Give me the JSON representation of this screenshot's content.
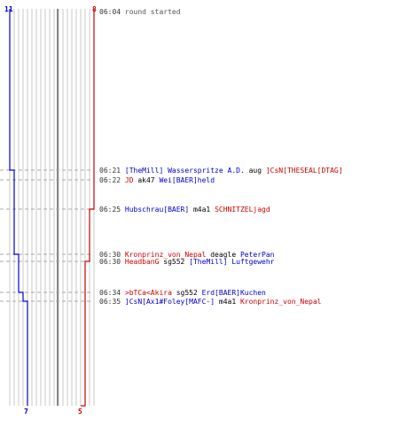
{
  "chart_data": {
    "type": "line",
    "x_start": "06:04",
    "x_end": "06:35",
    "blue_team": {
      "color": "#0000cc",
      "start": 11,
      "end": 7,
      "counts": [
        11,
        10,
        10,
        10,
        9,
        9,
        8,
        7,
        7
      ]
    },
    "red_team": {
      "color": "#cc0000",
      "start": 8,
      "end": 5,
      "counts": [
        8,
        8,
        8,
        7,
        7,
        6,
        6,
        6,
        5
      ]
    }
  },
  "colors": {
    "blue": "#0000cc",
    "red": "#cc0000",
    "grid": "#c8c8c8",
    "center": "#888888",
    "dash": "#aaaaaa"
  },
  "events": [
    {
      "time": "06:04",
      "type": "event",
      "text": "round started"
    },
    {
      "time": "06:21",
      "type": "kill",
      "killer": "[TheMill] Wasserspritze A.D.",
      "killer_team": "blue",
      "weapon": "aug",
      "victim": "]CsN[THESEAL[DTAG]",
      "victim_team": "red"
    },
    {
      "time": "06:22",
      "type": "kill",
      "killer": "JD",
      "killer_team": "red",
      "weapon": "ak47",
      "victim": "Wei[BAER]held",
      "victim_team": "blue"
    },
    {
      "time": "06:25",
      "type": "kill",
      "killer": "Hubschrau[BAER]",
      "killer_team": "blue",
      "weapon": "m4a1",
      "victim": "SCHNITZELjagd",
      "victim_team": "red"
    },
    {
      "time": "06:30",
      "type": "kill",
      "killer": "Kronprinz_von_Nepal",
      "killer_team": "red",
      "weapon": "deagle",
      "victim": "PeterPan",
      "victim_team": "blue"
    },
    {
      "time": "06:30",
      "type": "kill",
      "killer": "HeadbanG",
      "killer_team": "red",
      "weapon": "sg552",
      "victim": "[TheMill] Luftgewehr",
      "victim_team": "blue"
    },
    {
      "time": "06:34",
      "type": "kill",
      "killer": ">bTCa<Akira",
      "killer_team": "red",
      "weapon": "sg552",
      "victim": "Erd[BAER]Kuchen",
      "victim_team": "blue"
    },
    {
      "time": "06:35",
      "type": "kill",
      "killer": "]CsN[Ax1#Foley[MAFC-]",
      "killer_team": "blue",
      "weapon": "m4a1",
      "victim": "Kronprinz_von_Nepal",
      "victim_team": "red"
    }
  ]
}
